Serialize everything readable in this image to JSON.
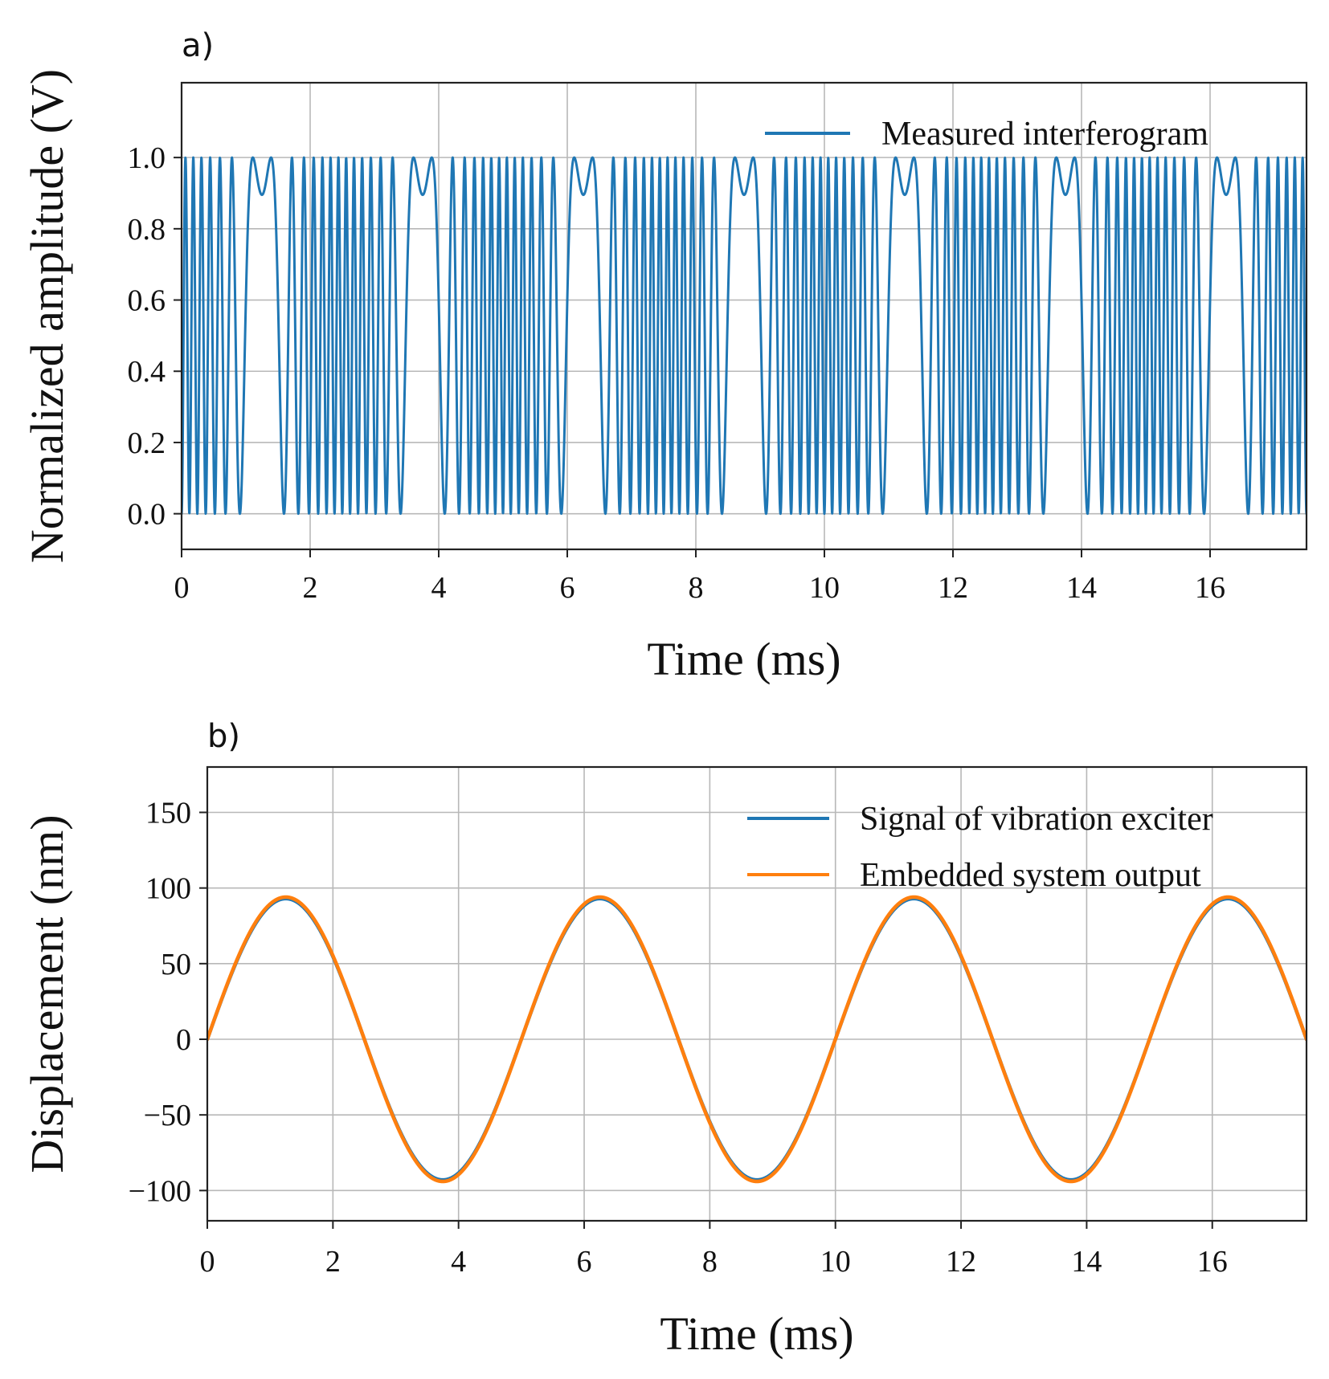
{
  "chart_data": [
    {
      "panel": "a)",
      "type": "line",
      "xlabel": "Time  (ms)",
      "ylabel": "Normalized amplitude  (V)",
      "xlim": [
        0,
        17.5
      ],
      "ylim": [
        -0.1,
        1.21
      ],
      "xticks": [
        0,
        2,
        4,
        6,
        8,
        10,
        12,
        14,
        16
      ],
      "yticks": [
        0.0,
        0.2,
        0.4,
        0.6,
        0.8,
        1.0
      ],
      "ytick_labels": [
        "0.0",
        "0.2",
        "0.4",
        "0.6",
        "0.8",
        "1.0"
      ],
      "grid": true,
      "legend_position": "top-right",
      "series": [
        {
          "name": "Measured interferogram",
          "color": "#1f77b4",
          "model": {
            "form": "0.5 - 0.5*cos(k*sin(2*pi*f*t))",
            "k_rad": 41.5,
            "f_khz": 0.2,
            "t_ms": [
              0,
              17.5
            ]
          }
        }
      ]
    },
    {
      "panel": "b)",
      "type": "line",
      "xlabel": "Time  (ms)",
      "ylabel": "Displacement  (nm)",
      "xlim": [
        0,
        17.5
      ],
      "ylim": [
        -120,
        180
      ],
      "xticks": [
        0,
        2,
        4,
        6,
        8,
        10,
        12,
        14,
        16
      ],
      "yticks": [
        -100,
        -50,
        0,
        50,
        100,
        150
      ],
      "ytick_labels": [
        "−100",
        "−50",
        "0",
        "50",
        "100",
        "150"
      ],
      "grid": true,
      "legend_position": "top-right",
      "series": [
        {
          "name": "Signal of vibration exciter",
          "color": "#1f77b4",
          "model": {
            "form": "A*sin(2*pi*f*t)",
            "amplitude_nm": 93,
            "f_khz": 0.2,
            "t_ms": [
              0,
              17.5
            ]
          }
        },
        {
          "name": "Embedded system output",
          "color": "#ff7f0e",
          "model": {
            "form": "A*sin(2*pi*f*t)",
            "amplitude_nm": 94,
            "f_khz": 0.2,
            "t_ms": [
              0,
              17.5
            ]
          }
        }
      ]
    }
  ]
}
